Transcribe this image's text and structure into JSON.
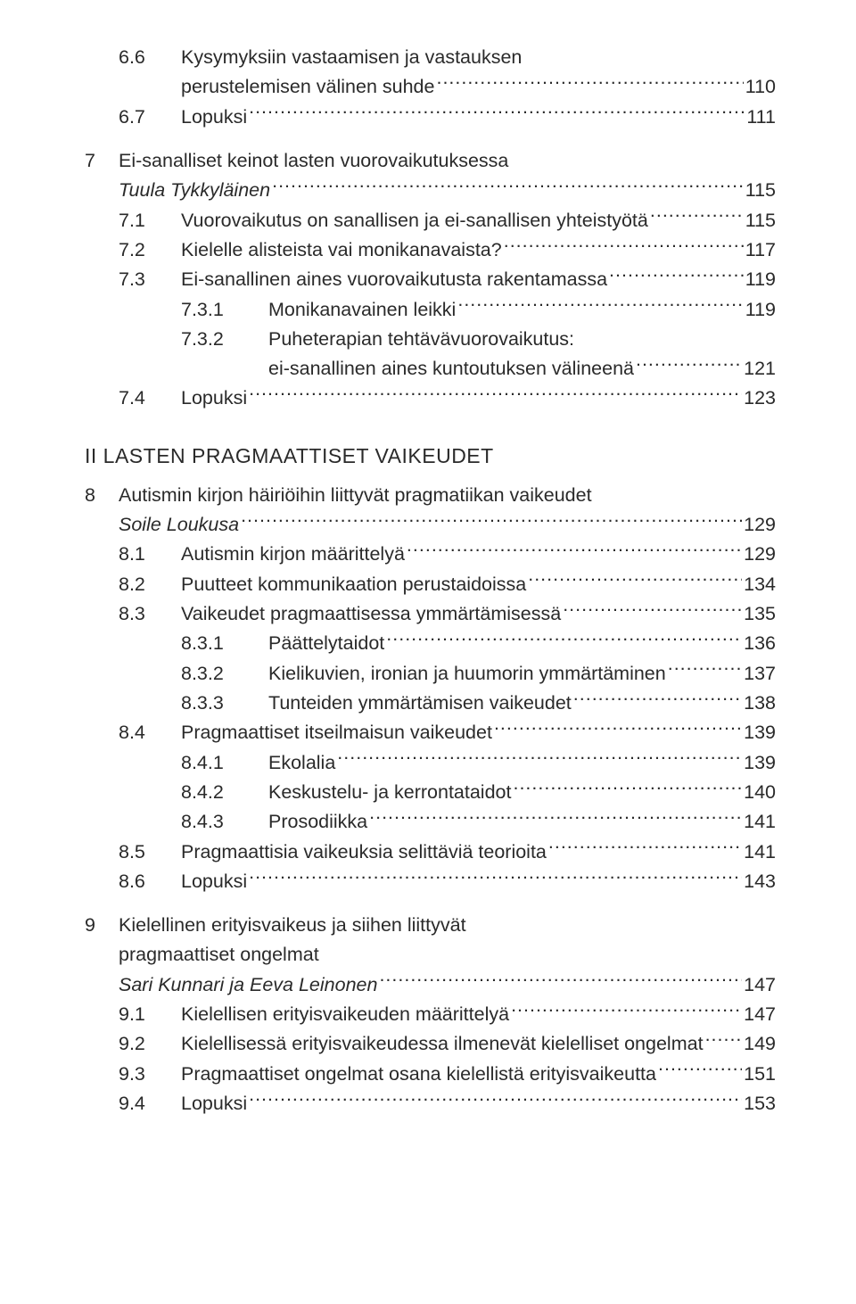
{
  "colors": {
    "text": "#2a2a2a",
    "background": "#ffffff"
  },
  "typography": {
    "body_fontsize_pt": 16,
    "heading_fontsize_pt": 17,
    "font_weight_body": 300,
    "font_weight_heading": 400,
    "font_family": "Helvetica Neue / sans-serif"
  },
  "toc": {
    "pre": [
      {
        "num": "6.6",
        "label_a": "Kysymyksiin vastaamisen ja vastauksen",
        "label_b": "perustelemisen välinen suhde",
        "page": "110",
        "level": 1
      },
      {
        "num": "6.7",
        "label": "Lopuksi",
        "page": "111",
        "level": 1
      }
    ],
    "ch7": {
      "num": "7",
      "title": "Ei-sanalliset keinot lasten vuorovaikutuksessa",
      "author": "Tuula Tykkyläinen",
      "page": "115",
      "items": [
        {
          "num": "7.1",
          "label": "Vuorovaikutus on sanallisen ja ei-sanallisen yhteistyötä",
          "page": "115",
          "level": 1
        },
        {
          "num": "7.2",
          "label": "Kielelle alisteista vai monikanavaista?",
          "page": "117",
          "level": 1
        },
        {
          "num": "7.3",
          "label": "Ei-sanallinen aines vuorovaikutusta rakentamassa",
          "page": "119",
          "level": 1
        },
        {
          "num": "7.3.1",
          "label": "Monikanavainen leikki",
          "page": "119",
          "level": 2
        },
        {
          "num": "7.3.2",
          "label_a": "Puheterapian tehtävävuorovaikutus:",
          "label_b": "ei-sanallinen aines kuntoutuksen välineenä",
          "page": "121",
          "level": 2
        },
        {
          "num": "7.4",
          "label": "Lopuksi",
          "page": "123",
          "level": 1
        }
      ]
    },
    "part2": "II LASTEN PRAGMAATTISET VAIKEUDET",
    "ch8": {
      "num": "8",
      "title": "Autismin kirjon häiriöihin liittyvät pragmatiikan vaikeudet",
      "author": "Soile Loukusa",
      "page": "129",
      "items": [
        {
          "num": "8.1",
          "label": "Autismin kirjon määrittelyä",
          "page": "129",
          "level": 1
        },
        {
          "num": "8.2",
          "label": "Puutteet kommunikaation perustaidoissa",
          "page": "134",
          "level": 1
        },
        {
          "num": "8.3",
          "label": "Vaikeudet pragmaattisessa ymmärtämisessä",
          "page": "135",
          "level": 1
        },
        {
          "num": "8.3.1",
          "label": "Päättelytaidot",
          "page": "136",
          "level": 2
        },
        {
          "num": "8.3.2",
          "label": "Kielikuvien, ironian ja huumorin ymmärtäminen",
          "page": "137",
          "level": 2
        },
        {
          "num": "8.3.3",
          "label": "Tunteiden ymmärtämisen vaikeudet",
          "page": "138",
          "level": 2
        },
        {
          "num": "8.4",
          "label": "Pragmaattiset itseilmaisun vaikeudet",
          "page": "139",
          "level": 1
        },
        {
          "num": "8.4.1",
          "label": "Ekolalia",
          "page": "139",
          "level": 2
        },
        {
          "num": "8.4.2",
          "label": "Keskustelu- ja kerrontataidot",
          "page": "140",
          "level": 2
        },
        {
          "num": "8.4.3",
          "label": "Prosodiikka",
          "page": "141",
          "level": 2
        },
        {
          "num": "8.5",
          "label": "Pragmaattisia vaikeuksia selittäviä teorioita",
          "page": "141",
          "level": 1
        },
        {
          "num": "8.6",
          "label": "Lopuksi",
          "page": "143",
          "level": 1
        }
      ]
    },
    "ch9": {
      "num": "9",
      "title_a": "Kielellinen erityisvaikeus ja siihen liittyvät",
      "title_b": "pragmaattiset ongelmat",
      "author": "Sari Kunnari ja Eeva Leinonen",
      "page": "147",
      "items": [
        {
          "num": "9.1",
          "label": "Kielellisen erityisvaikeuden määrittelyä",
          "page": "147",
          "level": 1
        },
        {
          "num": "9.2",
          "label": "Kielellisessä erityisvaikeudessa ilmenevät kielelliset ongelmat",
          "page": "149",
          "level": 1
        },
        {
          "num": "9.3",
          "label": "Pragmaattiset ongelmat osana kielellistä erityisvaikeutta",
          "page": "151",
          "level": 1
        },
        {
          "num": "9.4",
          "label": "Lopuksi",
          "page": "153",
          "level": 1
        }
      ]
    }
  }
}
